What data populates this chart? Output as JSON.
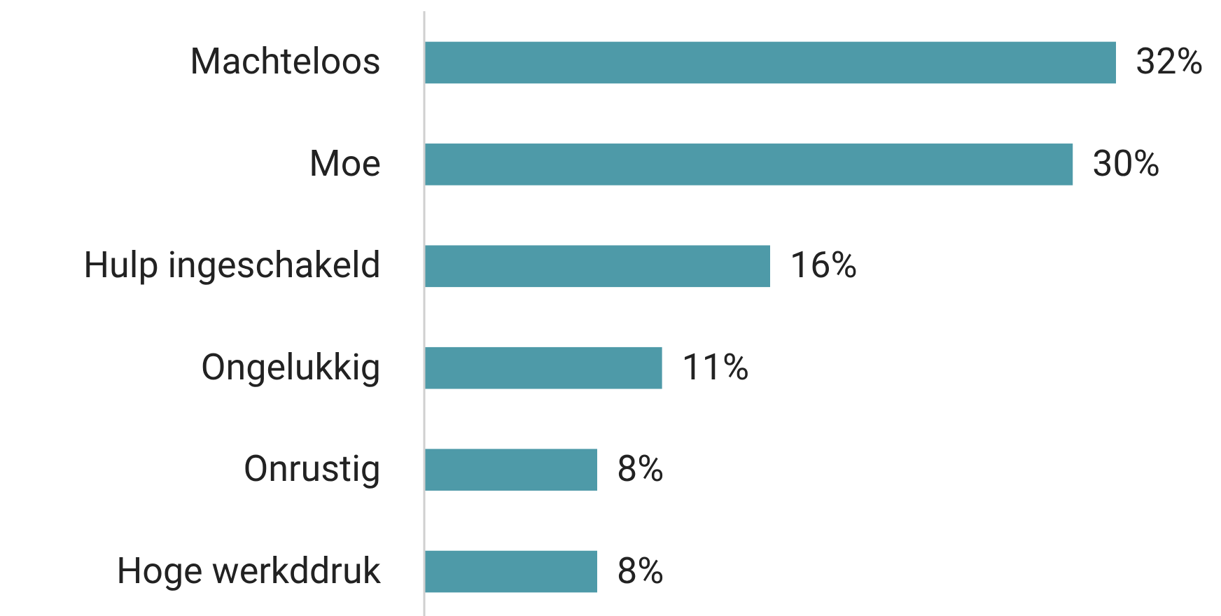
{
  "chart_data": {
    "type": "bar",
    "orientation": "horizontal",
    "categories": [
      "Machteloos",
      "Moe",
      "Hulp ingeschakeld",
      "Ongelukkig",
      "Onrustig",
      "Hoge werkddruk"
    ],
    "values": [
      32,
      30,
      16,
      11,
      8,
      8
    ],
    "value_labels": [
      "32%",
      "30%",
      "16%",
      "11%",
      "8%",
      "8%"
    ],
    "color": "#4e9aa8"
  }
}
